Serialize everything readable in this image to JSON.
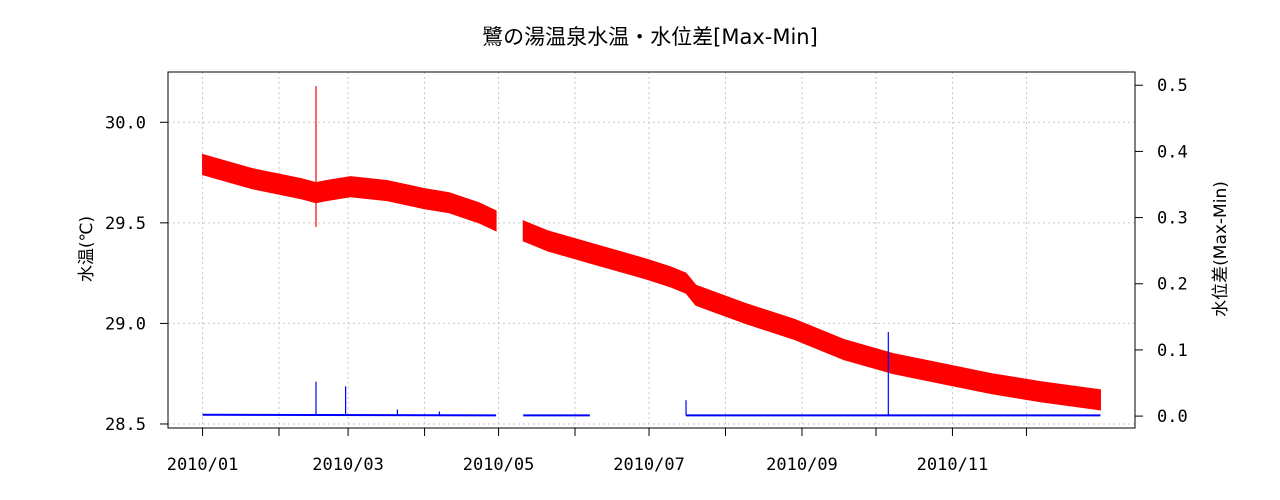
{
  "chart_data": {
    "type": "line",
    "title": "鷺の湯温泉水温・水位差[Max-Min]",
    "xlabel": "",
    "ylabel": "水温(℃)",
    "y2label": "水位差(Max-Min)",
    "x_ticks": [
      "2010/01",
      "2010/03",
      "2010/05",
      "2010/07",
      "2010/09",
      "2010/11"
    ],
    "x_tick_positions": [
      0,
      59,
      120,
      181,
      243,
      304
    ],
    "x_minor_ticks": [
      31,
      90,
      151,
      212,
      273,
      334
    ],
    "xlim": [
      -14,
      378
    ],
    "ylim": [
      28.48,
      30.25
    ],
    "y_ticks": [
      "28.5",
      "29.0",
      "29.5",
      "30.0"
    ],
    "y_tick_values": [
      28.5,
      29.0,
      29.5,
      30.0
    ],
    "y2lim": [
      -0.018,
      0.52
    ],
    "y2_ticks": [
      "0.0",
      "0.1",
      "0.2",
      "0.3",
      "0.4",
      "0.5"
    ],
    "y2_tick_values": [
      0.0,
      0.1,
      0.2,
      0.3,
      0.4,
      0.5
    ],
    "grid": true,
    "colors": {
      "temperature": "#ff0000",
      "water_level": "#0000ff"
    },
    "series": [
      {
        "axis": "left",
        "color": "#ff0000",
        "band_width": 0.1,
        "segments": [
          [
            [
              0,
              29.79
            ],
            [
              20,
              29.72
            ],
            [
              40,
              29.67
            ],
            [
              46,
              29.65
            ],
            [
              50,
              29.66
            ],
            [
              60,
              29.68
            ],
            [
              75,
              29.66
            ],
            [
              90,
              29.62
            ],
            [
              100,
              29.6
            ],
            [
              112,
              29.55
            ],
            [
              119,
              29.51
            ]
          ],
          [
            [
              130,
              29.46
            ],
            [
              140,
              29.41
            ],
            [
              160,
              29.34
            ],
            [
              180,
              29.27
            ],
            [
              190,
              29.23
            ],
            [
              196,
              29.2
            ],
            [
              200,
              29.14
            ],
            [
              220,
              29.05
            ],
            [
              240,
              28.97
            ],
            [
              260,
              28.87
            ],
            [
              280,
              28.8
            ],
            [
              300,
              28.75
            ],
            [
              320,
              28.7
            ],
            [
              340,
              28.66
            ],
            [
              364,
              28.62
            ]
          ]
        ],
        "spikes": [
          [
            46,
            30.18
          ],
          [
            46,
            29.48
          ]
        ]
      },
      {
        "axis": "right",
        "color": "#0000ff",
        "segments": [
          [
            [
              0,
              0.002
            ],
            [
              119,
              0.001
            ]
          ],
          [
            [
              130,
              0.001
            ],
            [
              157,
              0.001
            ]
          ],
          [
            [
              196,
              0.001
            ],
            [
              364,
              0.001
            ]
          ]
        ],
        "spikes": [
          [
            46,
            0.052
          ],
          [
            58,
            0.045
          ],
          [
            79,
            0.01
          ],
          [
            96,
            0.007
          ],
          [
            196,
            0.024
          ],
          [
            278,
            0.127
          ]
        ]
      }
    ]
  }
}
